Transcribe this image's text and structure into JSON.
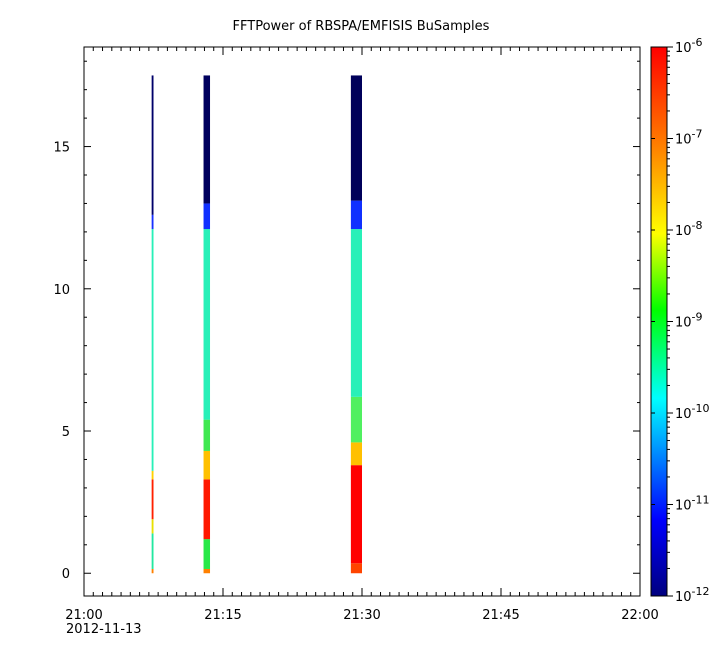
{
  "chart_data": {
    "type": "heatmap",
    "title": "FFTPower of RBSPA/EMFISIS  BuSamples",
    "xlabel": "",
    "ylabel": "",
    "x_range_minutes": [
      0,
      60
    ],
    "x_ticks": [
      {
        "minute": 0,
        "label": "21:00",
        "sublabel": "2012-11-13"
      },
      {
        "minute": 15,
        "label": "21:15"
      },
      {
        "minute": 30,
        "label": "21:30"
      },
      {
        "minute": 45,
        "label": "21:45"
      },
      {
        "minute": 60,
        "label": "22:00"
      }
    ],
    "ylim": [
      -0.8,
      18.5
    ],
    "y_ticks": [
      {
        "value": 0,
        "label": "0"
      },
      {
        "value": 5,
        "label": "5"
      },
      {
        "value": 10,
        "label": "10"
      },
      {
        "value": 15,
        "label": "15"
      }
    ],
    "colorbar": {
      "scale": "log",
      "range": [
        1e-12,
        1e-06
      ],
      "ticks": [
        {
          "value": 1e-06,
          "base": "10",
          "exp": "-6"
        },
        {
          "value": 1e-07,
          "base": "10",
          "exp": "-7"
        },
        {
          "value": 1e-08,
          "base": "10",
          "exp": "-8"
        },
        {
          "value": 1e-09,
          "base": "10",
          "exp": "-9"
        },
        {
          "value": 1e-10,
          "base": "10",
          "exp": "-10"
        },
        {
          "value": 1e-11,
          "base": "10",
          "exp": "-11"
        },
        {
          "value": 1e-12,
          "base": "10",
          "exp": "-12"
        }
      ],
      "colors": [
        "#00007f",
        "#0000ff",
        "#00ffff",
        "#00ff00",
        "#ffff00",
        "#ff7f00",
        "#ff0000"
      ]
    },
    "bursts": [
      {
        "start_minute": 7.3,
        "end_minute": 7.5,
        "segments": [
          {
            "y0": 0.0,
            "y1": 0.15,
            "color": "#ff8000"
          },
          {
            "y0": 0.15,
            "y1": 1.4,
            "color": "#22e8a0"
          },
          {
            "y0": 1.4,
            "y1": 1.9,
            "color": "#e8e000"
          },
          {
            "y0": 1.9,
            "y1": 3.3,
            "color": "#ff2000"
          },
          {
            "y0": 3.3,
            "y1": 3.6,
            "color": "#ffd000"
          },
          {
            "y0": 3.6,
            "y1": 12.1,
            "color": "#28f0b8"
          },
          {
            "y0": 12.1,
            "y1": 12.6,
            "color": "#1830ff"
          },
          {
            "y0": 12.6,
            "y1": 17.5,
            "color": "#00006a"
          }
        ]
      },
      {
        "start_minute": 12.9,
        "end_minute": 13.6,
        "segments": [
          {
            "y0": 0.0,
            "y1": 0.15,
            "color": "#ff8000"
          },
          {
            "y0": 0.15,
            "y1": 1.2,
            "color": "#28e848"
          },
          {
            "y0": 1.2,
            "y1": 3.3,
            "color": "#ff1800"
          },
          {
            "y0": 3.3,
            "y1": 4.3,
            "color": "#ffc000"
          },
          {
            "y0": 4.3,
            "y1": 5.4,
            "color": "#40e850"
          },
          {
            "y0": 5.4,
            "y1": 12.1,
            "color": "#28f0b8"
          },
          {
            "y0": 12.1,
            "y1": 13.0,
            "color": "#1030ff"
          },
          {
            "y0": 13.0,
            "y1": 17.5,
            "color": "#00005e"
          }
        ]
      },
      {
        "start_minute": 28.8,
        "end_minute": 30.0,
        "segments": [
          {
            "y0": 0.0,
            "y1": 0.35,
            "color": "#ff4400"
          },
          {
            "y0": 0.35,
            "y1": 3.8,
            "color": "#ff0000"
          },
          {
            "y0": 3.8,
            "y1": 4.6,
            "color": "#ffc000"
          },
          {
            "y0": 4.6,
            "y1": 6.2,
            "color": "#50f060"
          },
          {
            "y0": 6.2,
            "y1": 12.1,
            "color": "#28f0b8"
          },
          {
            "y0": 12.1,
            "y1": 13.1,
            "color": "#1030ff"
          },
          {
            "y0": 13.1,
            "y1": 17.5,
            "color": "#00005a"
          }
        ]
      }
    ]
  }
}
